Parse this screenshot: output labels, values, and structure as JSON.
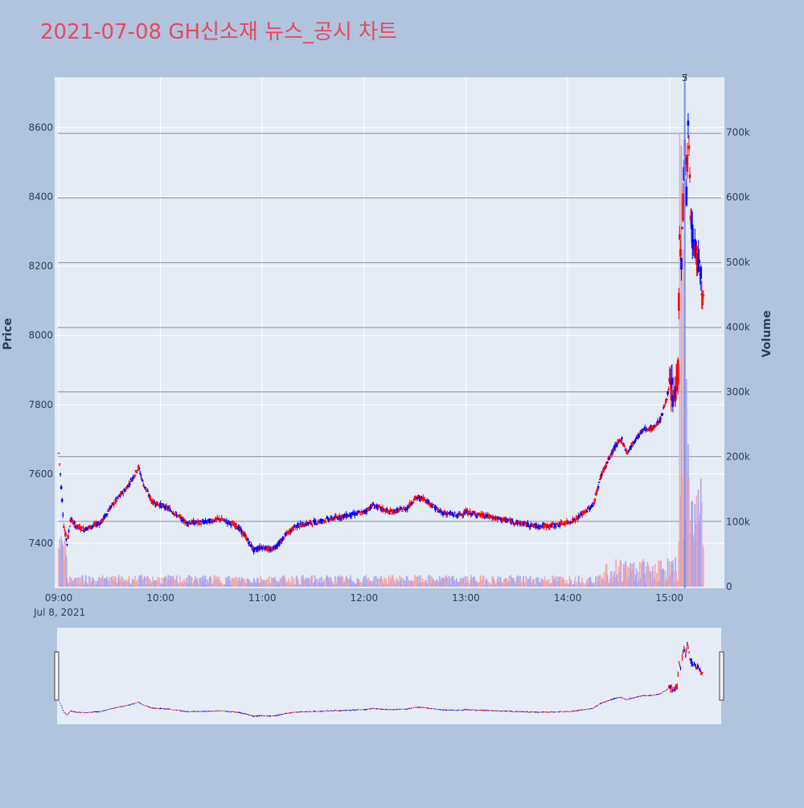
{
  "title": "2021-07-08 GH신소재 뉴스_공시 차트",
  "colors": {
    "page_bg": "#b0c4de",
    "plot_bg": "#e5ecf6",
    "up": "#ff0000",
    "down": "#0000ff",
    "vol_up": "#f4a6a6",
    "vol_down": "#a6a6f4",
    "hline": "#8a8a9a",
    "title": "#e8475f",
    "text": "#2a3f5f"
  },
  "chart_data": {
    "type": "candlestick",
    "x_label_date": "Jul 8, 2021",
    "x_ticks": [
      "09:00",
      "10:00",
      "11:00",
      "12:00",
      "13:00",
      "14:00",
      "15:00"
    ],
    "x_range": [
      "09:00",
      "15:30"
    ],
    "y_left": {
      "label": "Price",
      "ticks": [
        7400,
        7600,
        7800,
        8000,
        8200,
        8400,
        8600
      ],
      "range": [
        7270,
        8745
      ]
    },
    "y_right": {
      "label": "Volume",
      "ticks": [
        "0",
        "100k",
        "200k",
        "300k",
        "400k",
        "500k",
        "600k",
        "700k"
      ],
      "tick_values": [
        0,
        100000,
        200000,
        300000,
        400000,
        500000,
        600000,
        700000
      ],
      "range": [
        0,
        785000
      ]
    },
    "horizontal_lines": [
      7463,
      7650,
      7837,
      8023,
      8210,
      8397,
      8583
    ],
    "news_flags": [
      {
        "time": "15:09",
        "label": "5"
      },
      {
        "time": "15:09",
        "label": "7"
      }
    ],
    "price_waypoints": [
      [
        "09:00",
        7660
      ],
      [
        "09:01",
        7600
      ],
      [
        "09:03",
        7450
      ],
      [
        "09:05",
        7400
      ],
      [
        "09:07",
        7470
      ],
      [
        "09:10",
        7450
      ],
      [
        "09:15",
        7440
      ],
      [
        "09:20",
        7450
      ],
      [
        "09:25",
        7460
      ],
      [
        "09:30",
        7500
      ],
      [
        "09:35",
        7530
      ],
      [
        "09:40",
        7560
      ],
      [
        "09:45",
        7600
      ],
      [
        "09:47",
        7620
      ],
      [
        "09:50",
        7570
      ],
      [
        "09:55",
        7520
      ],
      [
        "10:00",
        7510
      ],
      [
        "10:05",
        7500
      ],
      [
        "10:10",
        7480
      ],
      [
        "10:15",
        7460
      ],
      [
        "10:25",
        7460
      ],
      [
        "10:35",
        7470
      ],
      [
        "10:45",
        7450
      ],
      [
        "10:50",
        7420
      ],
      [
        "10:55",
        7380
      ],
      [
        "11:00",
        7390
      ],
      [
        "11:05",
        7380
      ],
      [
        "11:10",
        7400
      ],
      [
        "11:15",
        7430
      ],
      [
        "11:20",
        7450
      ],
      [
        "11:30",
        7460
      ],
      [
        "11:40",
        7470
      ],
      [
        "11:50",
        7480
      ],
      [
        "12:00",
        7490
      ],
      [
        "12:05",
        7510
      ],
      [
        "12:10",
        7500
      ],
      [
        "12:15",
        7490
      ],
      [
        "12:25",
        7500
      ],
      [
        "12:30",
        7530
      ],
      [
        "12:35",
        7530
      ],
      [
        "12:40",
        7510
      ],
      [
        "12:45",
        7490
      ],
      [
        "12:55",
        7480
      ],
      [
        "13:00",
        7490
      ],
      [
        "13:10",
        7480
      ],
      [
        "13:20",
        7470
      ],
      [
        "13:30",
        7460
      ],
      [
        "13:40",
        7450
      ],
      [
        "13:50",
        7450
      ],
      [
        "14:00",
        7460
      ],
      [
        "14:05",
        7470
      ],
      [
        "14:10",
        7490
      ],
      [
        "14:15",
        7510
      ],
      [
        "14:20",
        7600
      ],
      [
        "14:25",
        7650
      ],
      [
        "14:28",
        7680
      ],
      [
        "14:32",
        7700
      ],
      [
        "14:35",
        7660
      ],
      [
        "14:40",
        7700
      ],
      [
        "14:45",
        7730
      ],
      [
        "14:50",
        7730
      ],
      [
        "14:55",
        7760
      ],
      [
        "15:00",
        7850
      ],
      [
        "15:03",
        7820
      ],
      [
        "15:05",
        7900
      ],
      [
        "15:06",
        8300
      ],
      [
        "15:07",
        8200
      ],
      [
        "15:09",
        8550
      ],
      [
        "15:10",
        8400
      ],
      [
        "15:11",
        8600
      ],
      [
        "15:13",
        8300
      ],
      [
        "15:15",
        8250
      ],
      [
        "15:18",
        8200
      ],
      [
        "15:20",
        8100
      ]
    ],
    "volume_spikes": [
      [
        "15:06",
        700000
      ],
      [
        "15:07",
        680000
      ],
      [
        "15:08",
        520000
      ],
      [
        "15:09",
        390000
      ],
      [
        "15:10",
        320000
      ],
      [
        "15:11",
        220000
      ],
      [
        "15:13",
        130000
      ],
      [
        "15:15",
        120000
      ],
      [
        "15:17",
        150000
      ],
      [
        "15:19",
        130000
      ],
      [
        "15:29",
        170000
      ]
    ]
  }
}
